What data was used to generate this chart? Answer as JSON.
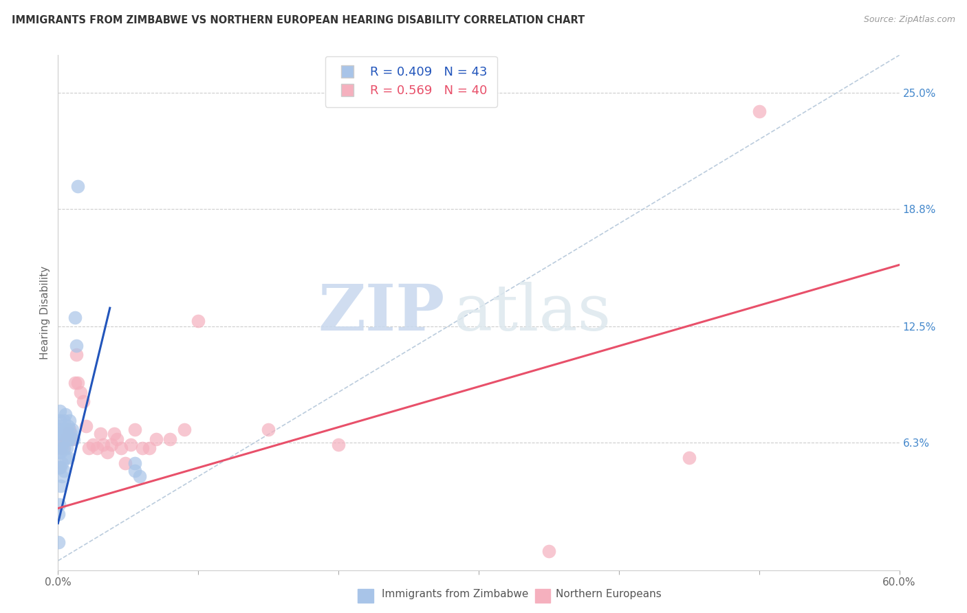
{
  "title": "IMMIGRANTS FROM ZIMBABWE VS NORTHERN EUROPEAN HEARING DISABILITY CORRELATION CHART",
  "source": "Source: ZipAtlas.com",
  "ylabel": "Hearing Disability",
  "xlim": [
    0,
    0.6
  ],
  "ylim": [
    -0.005,
    0.27
  ],
  "ytick_right_labels": [
    "6.3%",
    "12.5%",
    "18.8%",
    "25.0%"
  ],
  "ytick_right_positions": [
    0.063,
    0.125,
    0.188,
    0.25
  ],
  "legend_label1": "Immigrants from Zimbabwe",
  "legend_label2": "Northern Europeans",
  "blue_color": "#a8c4e8",
  "pink_color": "#f5b0be",
  "blue_line_color": "#2255bb",
  "pink_line_color": "#e8506a",
  "watermark_zip": "ZIP",
  "watermark_atlas": "atlas",
  "blue_scatter_x": [
    0.0005,
    0.0005,
    0.0008,
    0.001,
    0.001,
    0.001,
    0.0012,
    0.0012,
    0.0015,
    0.0015,
    0.0018,
    0.002,
    0.002,
    0.002,
    0.002,
    0.0025,
    0.003,
    0.003,
    0.003,
    0.003,
    0.004,
    0.004,
    0.004,
    0.004,
    0.005,
    0.005,
    0.005,
    0.006,
    0.006,
    0.007,
    0.007,
    0.007,
    0.008,
    0.008,
    0.009,
    0.01,
    0.011,
    0.012,
    0.013,
    0.014,
    0.055,
    0.055,
    0.058
  ],
  "blue_scatter_y": [
    0.025,
    0.01,
    0.03,
    0.062,
    0.058,
    0.05,
    0.075,
    0.07,
    0.08,
    0.068,
    0.072,
    0.068,
    0.058,
    0.05,
    0.04,
    0.065,
    0.068,
    0.06,
    0.052,
    0.045,
    0.075,
    0.068,
    0.06,
    0.048,
    0.078,
    0.068,
    0.055,
    0.07,
    0.06,
    0.072,
    0.065,
    0.055,
    0.075,
    0.065,
    0.068,
    0.07,
    0.065,
    0.13,
    0.115,
    0.2,
    0.052,
    0.048,
    0.045
  ],
  "pink_scatter_x": [
    0.001,
    0.002,
    0.003,
    0.004,
    0.005,
    0.006,
    0.007,
    0.008,
    0.009,
    0.01,
    0.012,
    0.013,
    0.014,
    0.016,
    0.018,
    0.02,
    0.022,
    0.025,
    0.028,
    0.03,
    0.032,
    0.035,
    0.038,
    0.04,
    0.042,
    0.045,
    0.048,
    0.052,
    0.055,
    0.06,
    0.065,
    0.07,
    0.08,
    0.09,
    0.1,
    0.15,
    0.2,
    0.35,
    0.45,
    0.5
  ],
  "pink_scatter_y": [
    0.05,
    0.06,
    0.062,
    0.06,
    0.065,
    0.065,
    0.068,
    0.07,
    0.065,
    0.065,
    0.095,
    0.11,
    0.095,
    0.09,
    0.085,
    0.072,
    0.06,
    0.062,
    0.06,
    0.068,
    0.062,
    0.058,
    0.062,
    0.068,
    0.065,
    0.06,
    0.052,
    0.062,
    0.07,
    0.06,
    0.06,
    0.065,
    0.065,
    0.07,
    0.128,
    0.07,
    0.062,
    0.005,
    0.055,
    0.24
  ],
  "blue_line_x": [
    0.0,
    0.037
  ],
  "blue_line_y": [
    0.02,
    0.135
  ],
  "pink_line_x": [
    0.0,
    0.6
  ],
  "pink_line_y": [
    0.028,
    0.158
  ],
  "diag_line_x": [
    0.0,
    0.6
  ],
  "diag_line_y": [
    0.0,
    0.27
  ]
}
